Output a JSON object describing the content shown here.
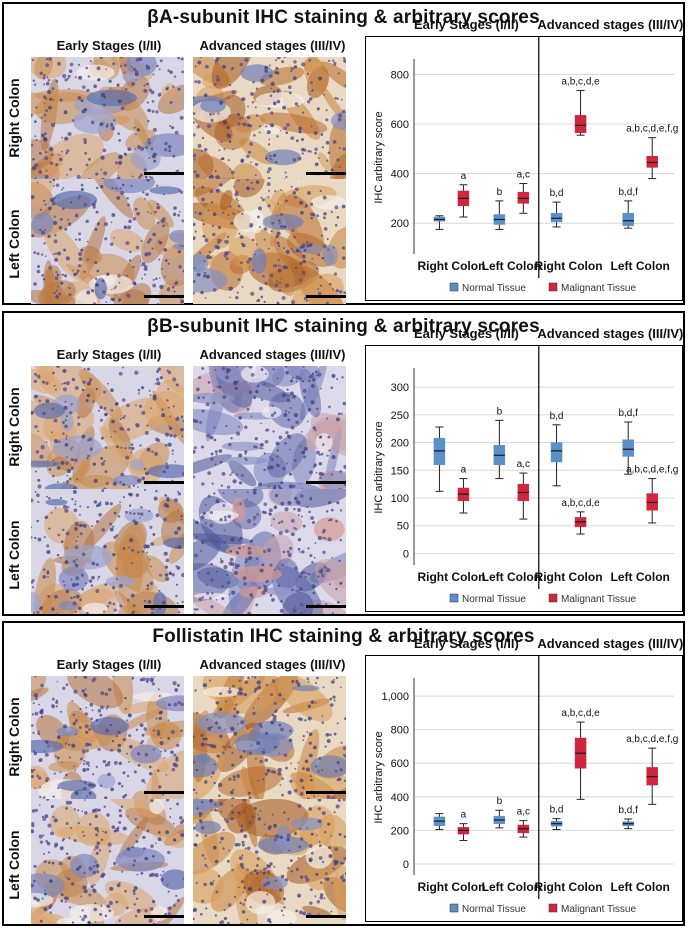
{
  "panels": [
    {
      "title": "βA-subunit IHC staining & arbitrary scores",
      "image_col_headers": [
        "Early Stages (I/II)",
        "Advanced stages (III/IV)"
      ],
      "row_labels": [
        "Right Colon",
        "Left Colon"
      ],
      "chart_data": {
        "type": "box",
        "group_headers": [
          "Early Stages (I/II)",
          "Advanced stages (III/IV)"
        ],
        "categories": [
          "Right Colon",
          "Left Colon",
          "Right Colon",
          "Left Colon"
        ],
        "ylabel": "IHC arbitrary score",
        "yticks": [
          "200",
          "400",
          "600",
          "800"
        ],
        "ylim": [
          100,
          830
        ],
        "legend": [
          "Normal Tissue",
          "Malignant Tissue"
        ],
        "colors": {
          "normal": "#5b8fc7",
          "malignant": "#d0263f"
        },
        "boxes": [
          {
            "series": "normal",
            "group": 0,
            "cat": 0,
            "min": 175,
            "q1": 208,
            "median": 215,
            "q3": 225,
            "max": 230,
            "label": ""
          },
          {
            "series": "malignant",
            "group": 0,
            "cat": 0,
            "min": 225,
            "q1": 270,
            "median": 300,
            "q3": 330,
            "max": 355,
            "label": "a"
          },
          {
            "series": "normal",
            "group": 0,
            "cat": 1,
            "min": 175,
            "q1": 195,
            "median": 215,
            "q3": 235,
            "max": 290,
            "label": "b"
          },
          {
            "series": "malignant",
            "group": 0,
            "cat": 1,
            "min": 240,
            "q1": 280,
            "median": 300,
            "q3": 325,
            "max": 360,
            "label": "a,c"
          },
          {
            "series": "normal",
            "group": 1,
            "cat": 0,
            "min": 185,
            "q1": 205,
            "median": 220,
            "q3": 240,
            "max": 285,
            "label": "b,d"
          },
          {
            "series": "malignant",
            "group": 1,
            "cat": 0,
            "min": 555,
            "q1": 565,
            "median": 595,
            "q3": 635,
            "max": 735,
            "label": "a,b,c,d,e"
          },
          {
            "series": "normal",
            "group": 1,
            "cat": 1,
            "min": 180,
            "q1": 190,
            "median": 210,
            "q3": 240,
            "max": 290,
            "label": "b,d,f"
          },
          {
            "series": "malignant",
            "group": 1,
            "cat": 1,
            "min": 380,
            "q1": 425,
            "median": 445,
            "q3": 470,
            "max": 545,
            "label": "a,b,c,d,e,f,g"
          }
        ]
      }
    },
    {
      "title": "βB-subunit IHC staining & arbitrary scores",
      "image_col_headers": [
        "Early Stages (I/II)",
        "Advanced stages (III/IV)"
      ],
      "row_labels": [
        "Right Colon",
        "Left Colon"
      ],
      "chart_data": {
        "type": "box",
        "group_headers": [
          "Early Stages (I/II)",
          "Advanced stages (III/IV)"
        ],
        "categories": [
          "Right Colon",
          "Left Colon",
          "Right Colon",
          "Left Colon"
        ],
        "ylabel": "IHC arbitrary score",
        "yticks": [
          "0",
          "50",
          "100",
          "150",
          "200",
          "250",
          "300"
        ],
        "ylim": [
          -10,
          320
        ],
        "legend": [
          "Normal Tissue",
          "Malignant Tissue"
        ],
        "colors": {
          "normal": "#5b8fc7",
          "malignant": "#d0263f"
        },
        "boxes": [
          {
            "series": "normal",
            "group": 0,
            "cat": 0,
            "min": 112,
            "q1": 160,
            "median": 185,
            "q3": 208,
            "max": 228,
            "label": ""
          },
          {
            "series": "malignant",
            "group": 0,
            "cat": 0,
            "min": 73,
            "q1": 95,
            "median": 107,
            "q3": 118,
            "max": 135,
            "label": "a"
          },
          {
            "series": "normal",
            "group": 0,
            "cat": 1,
            "min": 135,
            "q1": 160,
            "median": 177,
            "q3": 195,
            "max": 240,
            "label": "b"
          },
          {
            "series": "malignant",
            "group": 0,
            "cat": 1,
            "min": 62,
            "q1": 95,
            "median": 110,
            "q3": 125,
            "max": 145,
            "label": "a,c"
          },
          {
            "series": "normal",
            "group": 1,
            "cat": 0,
            "min": 122,
            "q1": 165,
            "median": 185,
            "q3": 200,
            "max": 232,
            "label": "b,d"
          },
          {
            "series": "malignant",
            "group": 1,
            "cat": 0,
            "min": 35,
            "q1": 48,
            "median": 57,
            "q3": 65,
            "max": 75,
            "label": "a,b,c,d,e"
          },
          {
            "series": "normal",
            "group": 1,
            "cat": 1,
            "min": 143,
            "q1": 175,
            "median": 188,
            "q3": 205,
            "max": 237,
            "label": "b,d,f"
          },
          {
            "series": "malignant",
            "group": 1,
            "cat": 1,
            "min": 55,
            "q1": 78,
            "median": 92,
            "q3": 108,
            "max": 135,
            "label": "a,b,c,d,e,f,g"
          }
        ]
      }
    },
    {
      "title": "Follistatin IHC staining & arbitrary scores",
      "image_col_headers": [
        "Early Stages (I/II)",
        "Advanced stages (III/IV)"
      ],
      "row_labels": [
        "Right Colon",
        "Left Colon"
      ],
      "chart_data": {
        "type": "box",
        "group_headers": [
          "Early Stages (I/II)",
          "Advanced stages (III/IV)"
        ],
        "categories": [
          "Right Colon",
          "Left Colon",
          "Right Colon",
          "Left Colon"
        ],
        "ylabel": "IHC arbitrary score",
        "yticks": [
          "0",
          "200",
          "400",
          "600",
          "800",
          "1,000"
        ],
        "ylim": [
          -30,
          1060
        ],
        "legend": [
          "Normal Tissue",
          "Malignant Tissue"
        ],
        "colors": {
          "normal": "#5b8fc7",
          "malignant": "#d0263f"
        },
        "boxes": [
          {
            "series": "normal",
            "group": 0,
            "cat": 0,
            "min": 205,
            "q1": 228,
            "median": 255,
            "q3": 280,
            "max": 300,
            "label": ""
          },
          {
            "series": "malignant",
            "group": 0,
            "cat": 0,
            "min": 140,
            "q1": 178,
            "median": 200,
            "q3": 218,
            "max": 240,
            "label": "a"
          },
          {
            "series": "normal",
            "group": 0,
            "cat": 1,
            "min": 215,
            "q1": 240,
            "median": 262,
            "q3": 285,
            "max": 320,
            "label": "b"
          },
          {
            "series": "malignant",
            "group": 0,
            "cat": 1,
            "min": 160,
            "q1": 185,
            "median": 210,
            "q3": 232,
            "max": 258,
            "label": "a,c"
          },
          {
            "series": "normal",
            "group": 1,
            "cat": 0,
            "min": 205,
            "q1": 225,
            "median": 240,
            "q3": 255,
            "max": 270,
            "label": "b,d"
          },
          {
            "series": "malignant",
            "group": 1,
            "cat": 0,
            "min": 385,
            "q1": 570,
            "median": 660,
            "q3": 750,
            "max": 845,
            "label": "a,b,c,d,e"
          },
          {
            "series": "normal",
            "group": 1,
            "cat": 1,
            "min": 210,
            "q1": 228,
            "median": 240,
            "q3": 252,
            "max": 268,
            "label": "b,d,f"
          },
          {
            "series": "malignant",
            "group": 1,
            "cat": 1,
            "min": 355,
            "q1": 470,
            "median": 520,
            "q3": 575,
            "max": 690,
            "label": "a,b,c,d,e,f,g"
          }
        ]
      }
    }
  ]
}
